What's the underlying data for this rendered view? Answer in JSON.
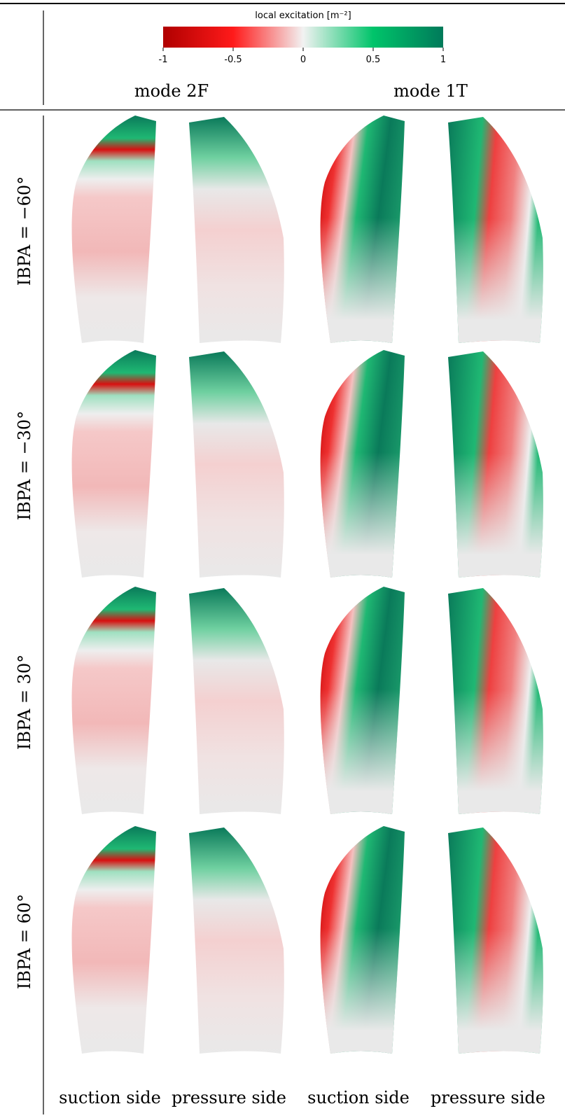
{
  "colorbar": {
    "label": "local excitation [m⁻²]",
    "lim": [
      -1,
      1
    ],
    "ticks": [
      -1,
      -0.5,
      0,
      0.5,
      1
    ],
    "colormap": [
      "#b00000",
      "#ff1a1a",
      "#f2f2f2",
      "#00c46a",
      "#007a5a"
    ]
  },
  "columns": [
    "mode 2F",
    "mode 1T"
  ],
  "rows": [
    "IBPA = −60°",
    "IBPA = −30°",
    "IBPA = 30°",
    "IBPA = 60°"
  ],
  "sides": [
    "suction side",
    "pressure side",
    "suction side",
    "pressure side"
  ]
}
